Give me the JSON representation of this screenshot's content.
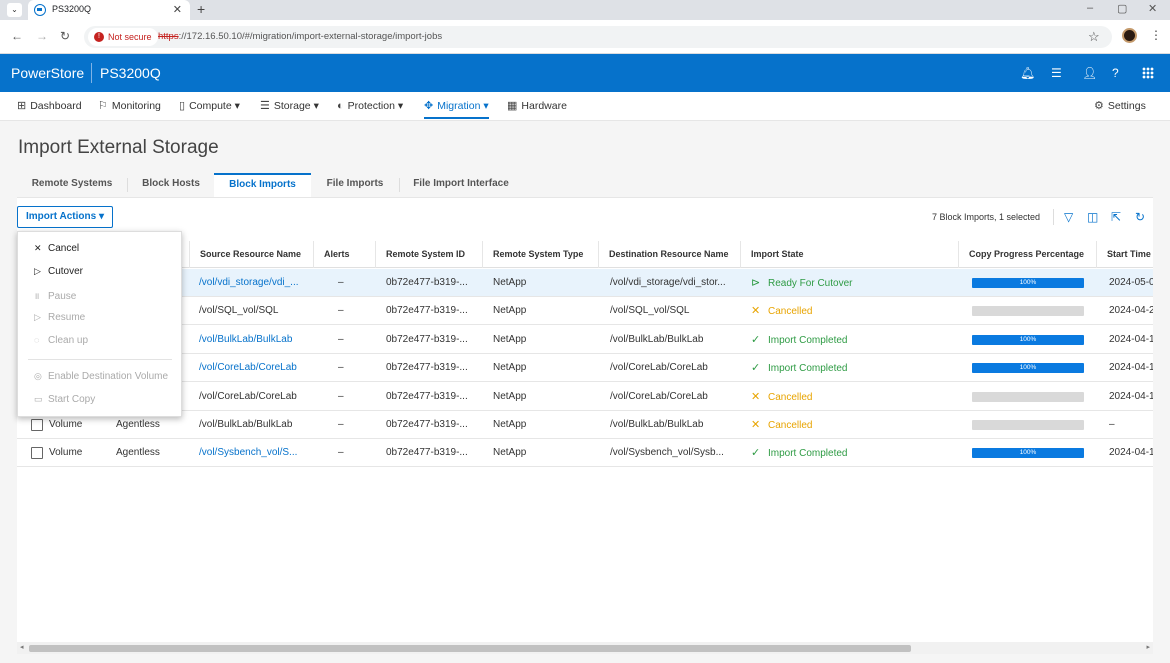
{
  "browser": {
    "tab_title": "PS3200Q",
    "tab_close": "✕",
    "new_tab": "+",
    "not_secure": "Not secure",
    "url_scheme": "https",
    "url_rest": "://172.16.50.10/#/migration/import-external-storage/import-jobs"
  },
  "header": {
    "brand": "PowerStore",
    "system_name": "PS3200Q"
  },
  "nav": {
    "items": [
      {
        "label": "Dashboard",
        "icon": "dashboard-icon"
      },
      {
        "label": "Monitoring",
        "icon": "flag-icon"
      },
      {
        "label": "Compute ▾",
        "icon": "compute-icon"
      },
      {
        "label": "Storage ▾",
        "icon": "storage-icon"
      },
      {
        "label": "Protection ▾",
        "icon": "shield-icon"
      },
      {
        "label": "Migration ▾",
        "icon": "migration-icon"
      },
      {
        "label": "Hardware",
        "icon": "hardware-icon"
      }
    ],
    "settings": "Settings"
  },
  "page": {
    "title": "Import External Storage",
    "subtabs": [
      "Remote Systems",
      "Block Hosts",
      "Block Imports",
      "File Imports",
      "File Import Interface"
    ],
    "active_subtab": "Block Imports"
  },
  "toolbar": {
    "import_actions": "Import Actions ▾",
    "summary": "7 Block Imports, 1 selected"
  },
  "menu": {
    "items": [
      {
        "label": "Cancel",
        "enabled": true,
        "icon": "✕"
      },
      {
        "label": "Cutover",
        "enabled": true,
        "icon": "▷"
      },
      {
        "label": "Pause",
        "enabled": false,
        "icon": "॥"
      },
      {
        "label": "Resume",
        "enabled": false,
        "icon": "▷"
      },
      {
        "label": "Clean up",
        "enabled": false,
        "icon": "◌"
      },
      {
        "label": "Enable Destination Volume",
        "enabled": false,
        "icon": "◎"
      },
      {
        "label": "Start Copy",
        "enabled": false,
        "icon": "▭"
      }
    ]
  },
  "table": {
    "columns": [
      "Source Resource Name",
      "Alerts",
      "Remote System ID",
      "Remote System Type",
      "Destination Resource Name",
      "Import State",
      "Copy Progress Percentage",
      "Start Time"
    ],
    "rows": [
      {
        "type": "",
        "mode": "",
        "source": "/vol/vdi_storage/vdi_...",
        "source_link": true,
        "alerts": "–",
        "system_id": "0b72e477-b319-...",
        "system_type": "NetApp",
        "dest": "/vol/vdi_storage/vdi_stor...",
        "state": "Ready For Cutover",
        "state_kind": "ready",
        "progress": 1.0,
        "progress_label": "100%",
        "start": "2024-05-0",
        "selected": true
      },
      {
        "type": "",
        "mode": "",
        "source": "/vol/SQL_vol/SQL",
        "source_link": false,
        "alerts": "–",
        "system_id": "0b72e477-b319-...",
        "system_type": "NetApp",
        "dest": "/vol/SQL_vol/SQL",
        "state": "Cancelled",
        "state_kind": "cancel",
        "progress": 0,
        "progress_label": "",
        "start": "2024-04-2",
        "selected": false
      },
      {
        "type": "",
        "mode": "",
        "source": "/vol/BulkLab/BulkLab",
        "source_link": true,
        "alerts": "–",
        "system_id": "0b72e477-b319-...",
        "system_type": "NetApp",
        "dest": "/vol/BulkLab/BulkLab",
        "state": "Import Completed",
        "state_kind": "done",
        "progress": 1.0,
        "progress_label": "100%",
        "start": "2024-04-1",
        "selected": false
      },
      {
        "type": "",
        "mode": "",
        "source": "/vol/CoreLab/CoreLab",
        "source_link": true,
        "alerts": "–",
        "system_id": "0b72e477-b319-...",
        "system_type": "NetApp",
        "dest": "/vol/CoreLab/CoreLab",
        "state": "Import Completed",
        "state_kind": "done",
        "progress": 1.0,
        "progress_label": "100%",
        "start": "2024-04-1",
        "selected": false
      },
      {
        "type": "",
        "mode": "",
        "source": "/vol/CoreLab/CoreLab",
        "source_link": false,
        "alerts": "–",
        "system_id": "0b72e477-b319-...",
        "system_type": "NetApp",
        "dest": "/vol/CoreLab/CoreLab",
        "state": "Cancelled",
        "state_kind": "cancel",
        "progress": 0,
        "progress_label": "",
        "start": "2024-04-1",
        "selected": false
      },
      {
        "type": "Volume",
        "mode": "Agentless",
        "source": "/vol/BulkLab/BulkLab",
        "source_link": false,
        "alerts": "–",
        "system_id": "0b72e477-b319-...",
        "system_type": "NetApp",
        "dest": "/vol/BulkLab/BulkLab",
        "state": "Cancelled",
        "state_kind": "cancel",
        "progress": 0,
        "progress_label": "",
        "start": "–",
        "selected": false
      },
      {
        "type": "Volume",
        "mode": "Agentless",
        "source": "/vol/Sysbench_vol/S...",
        "source_link": true,
        "alerts": "–",
        "system_id": "0b72e477-b319-...",
        "system_type": "NetApp",
        "dest": "/vol/Sysbench_vol/Sysb...",
        "state": "Import Completed",
        "state_kind": "done",
        "progress": 1.0,
        "progress_label": "100%",
        "start": "2024-04-1",
        "selected": false
      }
    ]
  },
  "colors": {
    "brand_blue": "#0672cb",
    "ready_green": "#2e9b44",
    "cancel_amber": "#e8a400"
  }
}
